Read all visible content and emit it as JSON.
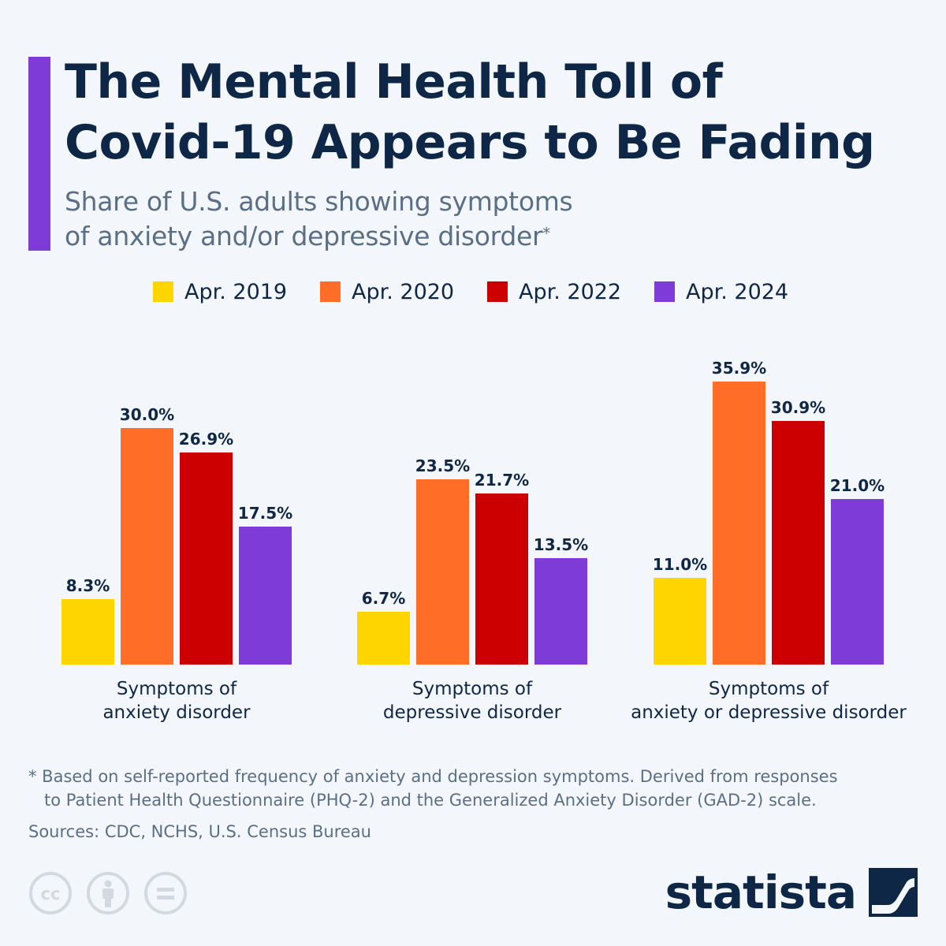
{
  "title_lines": [
    "The Mental Health Toll of",
    "Covid-19 Appears to Be Fading"
  ],
  "subtitle_lines": [
    "Share of U.S. adults showing symptoms",
    "of anxiety and/or depressive disorder"
  ],
  "subtitle_mark": "*",
  "accent_color": "#7e3bd8",
  "legend": [
    {
      "label": "Apr. 2019",
      "color": "#ffd500"
    },
    {
      "label": "Apr. 2020",
      "color": "#ff6d26"
    },
    {
      "label": "Apr. 2022",
      "color": "#cc0000"
    },
    {
      "label": "Apr. 2024",
      "color": "#7e3bd8"
    }
  ],
  "chart_data": {
    "type": "bar",
    "title": "Share of U.S. adults showing symptoms of anxiety and/or depressive disorder",
    "categories": [
      [
        "Symptoms of",
        "anxiety disorder"
      ],
      [
        "Symptoms of",
        "depressive disorder"
      ],
      [
        "Symptoms of",
        "anxiety or depressive disorder"
      ]
    ],
    "series": [
      {
        "name": "Apr. 2019",
        "color": "#ffd500",
        "values": [
          8.3,
          6.7,
          11.0
        ],
        "labels": [
          "8.3%",
          "6.7%",
          "11.0%"
        ]
      },
      {
        "name": "Apr. 2020",
        "color": "#ff6d26",
        "values": [
          30.0,
          23.5,
          35.9
        ],
        "labels": [
          "30.0%",
          "23.5%",
          "35.9%"
        ]
      },
      {
        "name": "Apr. 2022",
        "color": "#cc0000",
        "values": [
          26.9,
          21.7,
          30.9
        ],
        "labels": [
          "26.9%",
          "21.7%",
          "30.9%"
        ]
      },
      {
        "name": "Apr. 2024",
        "color": "#7e3bd8",
        "values": [
          17.5,
          13.5,
          21.0
        ],
        "labels": [
          "17.5%",
          "13.5%",
          "21.0%"
        ]
      }
    ],
    "ylim": [
      0,
      36
    ],
    "grid": false,
    "xlabel": "",
    "ylabel": ""
  },
  "footnote_lines": [
    "* Based on self-reported frequency of anxiety and depression symptoms. Derived from responses",
    "to Patient Health Questionnaire (PHQ-2) and the Generalized Anxiety Disorder (GAD-2) scale."
  ],
  "sources": "Sources: CDC, NCHS, U.S. Census Bureau",
  "license_icons": [
    "cc-icon",
    "attribution-icon",
    "no-derivatives-icon"
  ],
  "brand": {
    "name": "statista",
    "icon": "statista-logo-icon"
  }
}
